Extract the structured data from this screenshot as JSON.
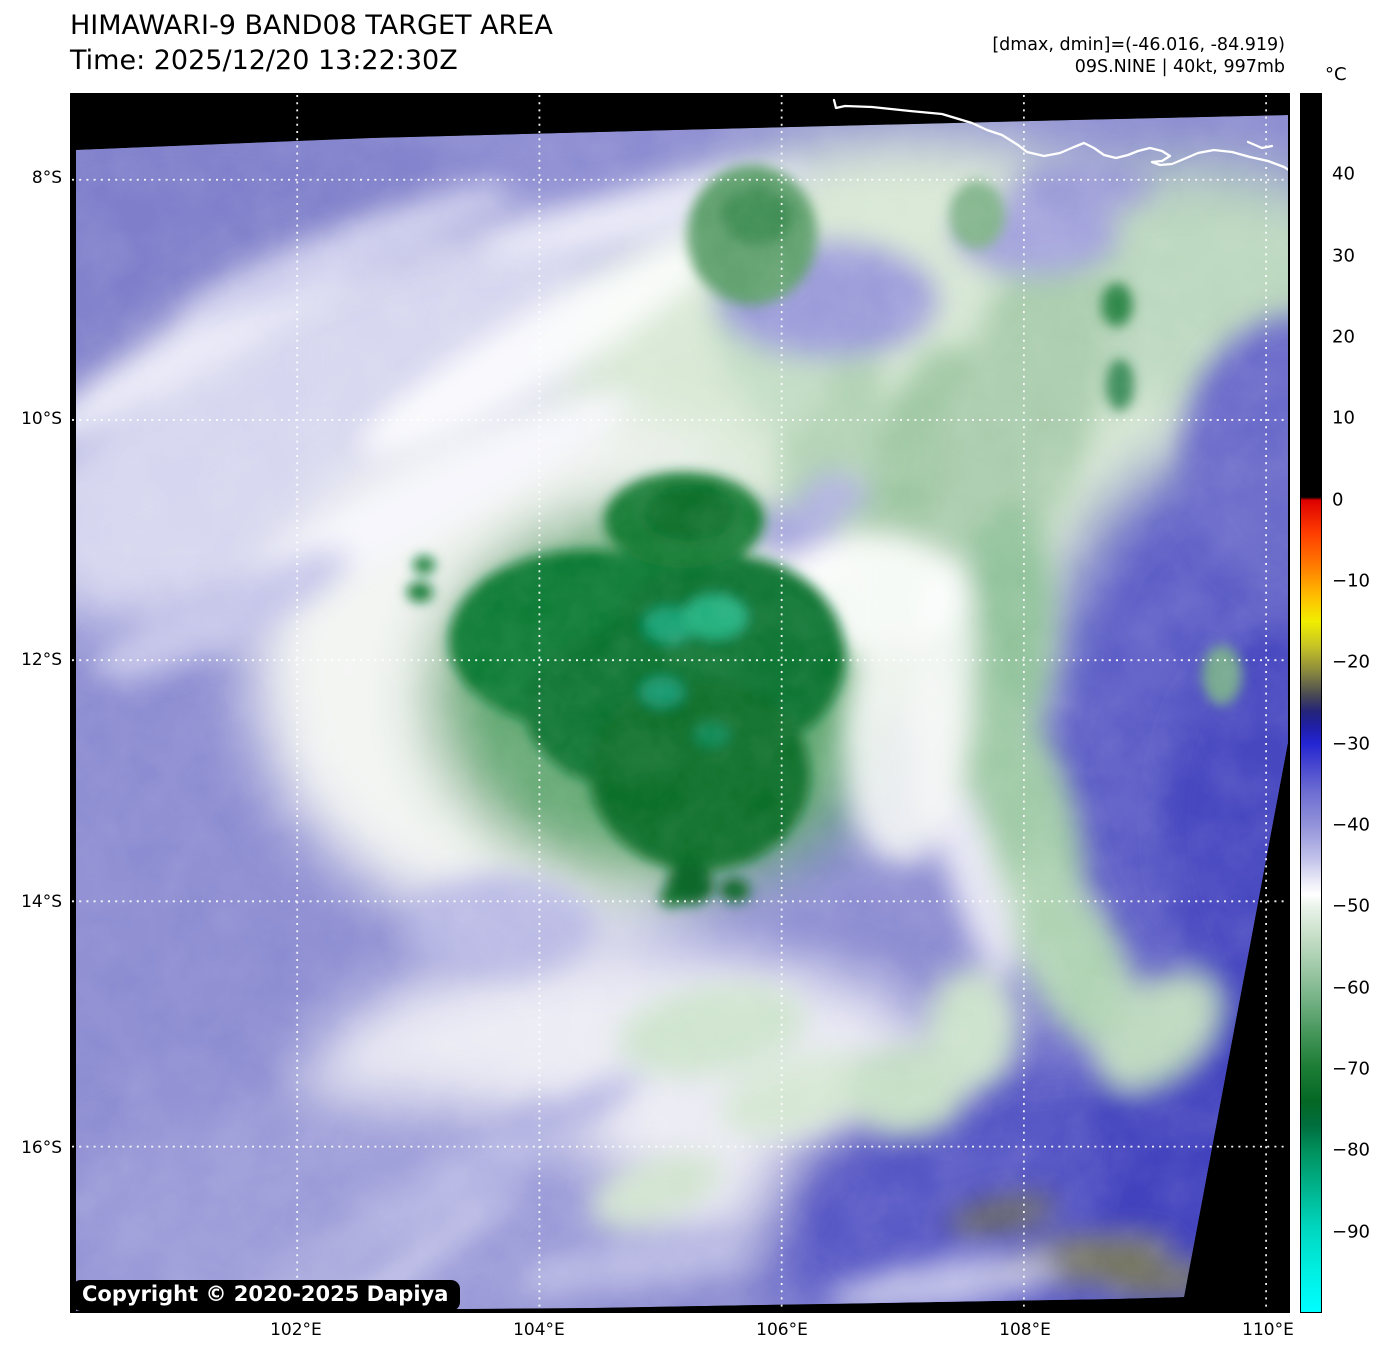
{
  "header": {
    "title": "HIMAWARI-9 BAND08 TARGET AREA",
    "time": "Time: 2025/12/20 13:22:30Z"
  },
  "annotations": {
    "range_line": "[dmax, dmin]=(-46.016, -84.919)",
    "storm_line": "09S.NINE | 40kt, 997mb"
  },
  "axes": {
    "lon_ticks": [
      {
        "label": "102°E",
        "pos": 18.52
      },
      {
        "label": "104°E",
        "pos": 38.44
      },
      {
        "label": "106°E",
        "pos": 58.36
      },
      {
        "label": "108°E",
        "pos": 78.28
      },
      {
        "label": "110°E",
        "pos": 98.2
      }
    ],
    "lat_ticks": [
      {
        "label": "8°S",
        "pos": 6.97
      },
      {
        "label": "10°S",
        "pos": 26.72
      },
      {
        "label": "12°S",
        "pos": 46.48
      },
      {
        "label": "14°S",
        "pos": 66.31
      },
      {
        "label": "16°S",
        "pos": 86.48
      }
    ]
  },
  "colorbar": {
    "unit": "°C",
    "ticks": [
      {
        "label": "40",
        "pos": 6.67
      },
      {
        "label": "30",
        "pos": 13.33
      },
      {
        "label": "20",
        "pos": 20.0
      },
      {
        "label": "10",
        "pos": 26.67
      },
      {
        "label": "0",
        "pos": 33.33
      },
      {
        "label": "−10",
        "pos": 40.0
      },
      {
        "label": "−20",
        "pos": 46.67
      },
      {
        "label": "−30",
        "pos": 53.33
      },
      {
        "label": "−40",
        "pos": 60.0
      },
      {
        "label": "−50",
        "pos": 66.67
      },
      {
        "label": "−60",
        "pos": 73.33
      },
      {
        "label": "−70",
        "pos": 80.0
      },
      {
        "label": "−80",
        "pos": 86.67
      },
      {
        "label": "−90",
        "pos": 93.33
      }
    ]
  },
  "map": {
    "copyright": "Copyright © 2020-2025 Dapiya",
    "palette": {
      "outside_scan_black": "#000000",
      "base_cloudfree_purple": "#8c8cd2",
      "deep_convection_green": "#0b7030",
      "coldest_tops_teal": "#23b07e",
      "warm_air_dark_blue": "#4343bd",
      "cirrus_white": "#ffffff"
    }
  }
}
